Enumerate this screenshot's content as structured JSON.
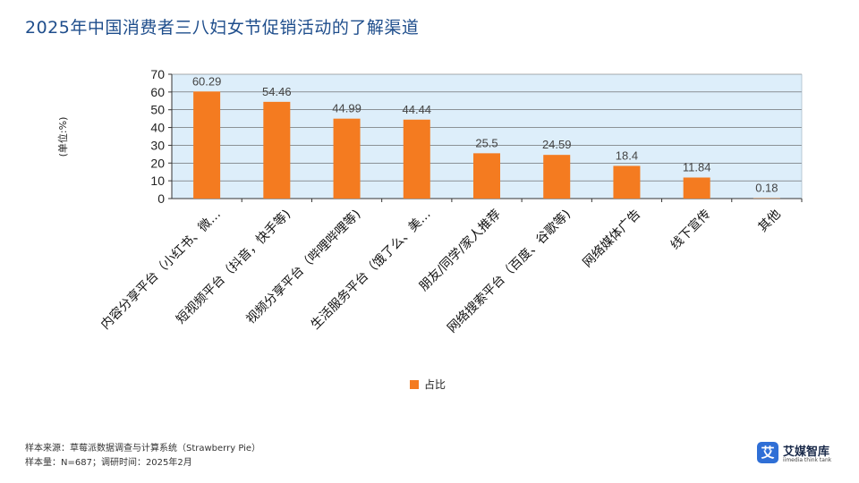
{
  "title": "2025年中国消费者三八妇女节促销活动的了解渠道",
  "footer": {
    "source": "样本来源：草莓派数据调查与计算系统（Strawberry Pie）",
    "sample": "样本量：N=687；调研时间：2025年2月"
  },
  "logo": {
    "name": "艾媒智库",
    "sub": "iimedia think tank",
    "icon": "艾"
  },
  "colors": {
    "bar": "#f47b20",
    "plot_bg": "#ddeefa",
    "grid": "#5a5a5a",
    "title": "#1f4e8c"
  },
  "chart_data": {
    "type": "bar",
    "title": "2025年中国消费者三八妇女节促销活动的了解渠道",
    "ylabel": "(单位:%)",
    "xlabel": "",
    "ylim": [
      0,
      70
    ],
    "yticks": [
      0,
      10,
      20,
      30,
      40,
      50,
      60,
      70
    ],
    "categories": [
      "内容分享平台（小红书、微…",
      "短视频平台（抖音，快手等)",
      "视频分享平台（哔哩哔哩等)",
      "生活服务平台（饿了么、美…",
      "朋友/同学/家人推荐",
      "网络搜索平台（百度、谷歌等)",
      "网络媒体广告",
      "线下宣传",
      "其他"
    ],
    "value_labels": [
      "60.29",
      "54.46",
      "44.99",
      "44.44",
      "25.5",
      "24.59",
      "18.4",
      "11.84",
      "0.18"
    ],
    "series": [
      {
        "name": "占比",
        "values": [
          60.29,
          54.46,
          44.99,
          44.44,
          25.5,
          24.59,
          18.4,
          11.84,
          0.18
        ]
      }
    ],
    "legend": "bottom-center",
    "grid": true
  }
}
